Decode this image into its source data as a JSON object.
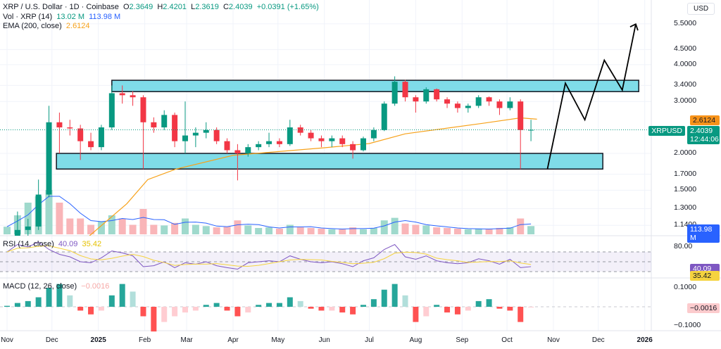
{
  "header": {
    "symbol": "XRP / U.S. Dollar · 1D · Coinbase",
    "o_label": "O",
    "o": "2.3649",
    "h_label": "H",
    "h": "2.4201",
    "l_label": "L",
    "l": "2.3619",
    "c_label": "C",
    "c": "2.4039",
    "change": "+0.0391 (+1.65%)",
    "vol_label": "Vol · XRP (14)",
    "vol": "13.02 M",
    "vol_ma": "113.98 M",
    "ema_label": "EMA (200, close)",
    "ema": "2.6124",
    "rsi_label": "RSI (14, close)",
    "rsi": "40.09",
    "rsi_ma": "35.42",
    "macd_label": "MACD (12, 26, close)",
    "macd": "−0.0016"
  },
  "axis": {
    "currency": "USD",
    "price_ticks": [
      "5.5000",
      "4.5000",
      "4.0000",
      "3.4000",
      "3.0000",
      "2.0000",
      "1.7000",
      "1.5000",
      "1.3000",
      "1.1400"
    ],
    "rsi_ticks": [
      "80.00"
    ],
    "macd_ticks": [
      "0.1000",
      "−0.1000"
    ],
    "date_ticks": [
      "Nov",
      "Dec",
      "2025",
      "Feb",
      "Mar",
      "Apr",
      "May",
      "Jun",
      "Jul",
      "Aug",
      "Sep",
      "Oct",
      "Nov",
      "Dec",
      "2026"
    ],
    "tags": {
      "ema": "2.6124",
      "symbol": "XRPUSD",
      "price": "2.4039",
      "countdown": "12:44:06",
      "vol_ma": "113.98 M",
      "vol": "13.02 M",
      "rsi": "40.09",
      "rsi_ma": "35.42",
      "macd": "−0.0016"
    }
  },
  "colors": {
    "up": "#089981",
    "down": "#f23645",
    "ema": "#f7a21b",
    "vol_ma": "#2962ff",
    "rsi": "#7e57c2",
    "rsi_ma": "#f5d33f",
    "zone": "#7fdce8"
  },
  "chart_data": {
    "type": "candlestick",
    "scale": "log",
    "date_ticks": [
      "2024-11-01",
      "2024-12-01",
      "2025-01-01",
      "2025-02-01",
      "2025-03-01",
      "2025-04-01",
      "2025-05-01",
      "2025-06-01",
      "2025-07-01",
      "2025-08-01",
      "2025-09-01",
      "2025-10-01",
      "2025-11-01",
      "2025-12-01",
      "2026-01-01"
    ],
    "ohlcv": [
      [
        "2024-11-01",
        0.51,
        0.56,
        0.5,
        0.55,
        120
      ],
      [
        "2024-11-08",
        0.55,
        1.27,
        0.54,
        1.1,
        300
      ],
      [
        "2024-11-15",
        1.1,
        1.2,
        0.98,
        1.13,
        500
      ],
      [
        "2024-11-22",
        1.13,
        1.63,
        1.1,
        1.45,
        600
      ],
      [
        "2024-11-29",
        1.45,
        2.9,
        1.42,
        2.55,
        700
      ],
      [
        "2024-12-06",
        2.55,
        2.75,
        2.0,
        2.45,
        500
      ],
      [
        "2024-12-13",
        2.45,
        2.6,
        2.3,
        2.43,
        250
      ],
      [
        "2024-12-20",
        2.43,
        2.5,
        1.9,
        2.2,
        250
      ],
      [
        "2024-12-27",
        2.2,
        2.35,
        2.05,
        2.1,
        150
      ],
      [
        "2025-01-03",
        2.1,
        2.5,
        2.05,
        2.45,
        200
      ],
      [
        "2025-01-10",
        2.45,
        3.4,
        2.4,
        3.2,
        300
      ],
      [
        "2025-01-17",
        3.2,
        3.4,
        2.95,
        3.15,
        250
      ],
      [
        "2025-01-24",
        3.15,
        3.25,
        2.9,
        3.1,
        150
      ],
      [
        "2025-01-31",
        3.1,
        3.15,
        1.77,
        2.55,
        400
      ],
      [
        "2025-02-07",
        2.55,
        2.65,
        2.35,
        2.45,
        150
      ],
      [
        "2025-02-14",
        2.45,
        2.8,
        2.4,
        2.7,
        140
      ],
      [
        "2025-02-21",
        2.7,
        2.75,
        2.1,
        2.2,
        180
      ],
      [
        "2025-02-28",
        2.2,
        3.0,
        2.0,
        2.3,
        250
      ],
      [
        "2025-03-07",
        2.3,
        2.45,
        2.1,
        2.35,
        150
      ],
      [
        "2025-03-14",
        2.35,
        2.55,
        2.25,
        2.4,
        130
      ],
      [
        "2025-03-21",
        2.4,
        2.45,
        2.15,
        2.2,
        110
      ],
      [
        "2025-03-28",
        2.2,
        2.25,
        2.0,
        2.05,
        120
      ],
      [
        "2025-04-04",
        2.05,
        2.15,
        1.62,
        2.0,
        220
      ],
      [
        "2025-04-11",
        2.0,
        2.15,
        1.95,
        2.1,
        140
      ],
      [
        "2025-04-18",
        2.1,
        2.2,
        2.05,
        2.15,
        100
      ],
      [
        "2025-04-25",
        2.15,
        2.35,
        2.1,
        2.2,
        110
      ],
      [
        "2025-05-02",
        2.2,
        2.25,
        2.1,
        2.15,
        90
      ],
      [
        "2025-05-09",
        2.15,
        2.6,
        2.12,
        2.45,
        150
      ],
      [
        "2025-05-16",
        2.45,
        2.5,
        2.3,
        2.35,
        110
      ],
      [
        "2025-05-23",
        2.35,
        2.4,
        2.2,
        2.25,
        100
      ],
      [
        "2025-05-30",
        2.25,
        2.3,
        2.1,
        2.2,
        90
      ],
      [
        "2025-06-06",
        2.2,
        2.3,
        2.1,
        2.25,
        80
      ],
      [
        "2025-06-13",
        2.25,
        2.3,
        2.1,
        2.15,
        80
      ],
      [
        "2025-06-20",
        2.15,
        2.2,
        1.92,
        2.05,
        110
      ],
      [
        "2025-06-27",
        2.05,
        2.28,
        2.03,
        2.25,
        80
      ],
      [
        "2025-07-04",
        2.25,
        2.45,
        2.2,
        2.4,
        100
      ],
      [
        "2025-07-11",
        2.4,
        3.0,
        2.38,
        2.95,
        220
      ],
      [
        "2025-07-18",
        2.95,
        3.65,
        2.9,
        3.5,
        260
      ],
      [
        "2025-07-25",
        3.5,
        3.55,
        3.0,
        3.1,
        170
      ],
      [
        "2025-08-01",
        3.1,
        3.15,
        2.75,
        3.0,
        150
      ],
      [
        "2025-08-08",
        3.0,
        3.35,
        2.95,
        3.3,
        140
      ],
      [
        "2025-08-15",
        3.3,
        3.32,
        3.0,
        3.05,
        110
      ],
      [
        "2025-08-22",
        3.05,
        3.1,
        2.85,
        2.95,
        100
      ],
      [
        "2025-08-29",
        2.95,
        3.0,
        2.75,
        2.85,
        90
      ],
      [
        "2025-09-05",
        2.85,
        2.95,
        2.75,
        2.9,
        80
      ],
      [
        "2025-09-12",
        2.9,
        3.15,
        2.85,
        3.1,
        90
      ],
      [
        "2025-09-19",
        3.1,
        3.12,
        2.9,
        3.0,
        80
      ],
      [
        "2025-09-26",
        3.0,
        3.05,
        2.7,
        2.85,
        100
      ],
      [
        "2025-10-03",
        2.85,
        3.1,
        2.8,
        3.0,
        110
      ],
      [
        "2025-10-10",
        3.0,
        3.05,
        1.77,
        2.4,
        250
      ],
      [
        "2025-10-17",
        2.4,
        2.6,
        2.2,
        2.4039,
        130
      ]
    ],
    "ema200": [
      [
        "2024-12-26",
        1.05
      ],
      [
        "2025-01-20",
        1.35
      ],
      [
        "2025-02-03",
        1.63
      ],
      [
        "2025-02-22",
        1.77
      ],
      [
        "2025-04-01",
        1.97
      ],
      [
        "2025-06-01",
        2.09
      ],
      [
        "2025-07-01",
        2.16
      ],
      [
        "2025-07-25",
        2.33
      ],
      [
        "2025-09-15",
        2.53
      ],
      [
        "2025-10-10",
        2.64
      ],
      [
        "2025-10-21",
        2.6124
      ]
    ],
    "rsi": [
      70,
      85,
      80,
      90,
      75,
      65,
      60,
      50,
      48,
      58,
      72,
      68,
      62,
      40,
      42,
      50,
      38,
      48,
      45,
      50,
      42,
      38,
      35,
      48,
      50,
      52,
      50,
      62,
      55,
      50,
      48,
      50,
      46,
      40,
      52,
      58,
      75,
      85,
      60,
      55,
      62,
      52,
      48,
      46,
      48,
      56,
      52,
      45,
      55,
      38,
      40.09
    ],
    "macd_hist": [
      0.005,
      0.02,
      0.03,
      0.05,
      0.1,
      0.12,
      0.06,
      -0.02,
      -0.04,
      -0.02,
      0.06,
      0.12,
      0.08,
      -0.05,
      -0.13,
      -0.08,
      -0.05,
      -0.03,
      -0.02,
      0.01,
      0.02,
      -0.02,
      -0.05,
      -0.03,
      0.01,
      0.02,
      0.02,
      0.05,
      0.03,
      -0.01,
      -0.02,
      -0.02,
      -0.03,
      -0.04,
      0.01,
      0.04,
      0.09,
      0.12,
      0.06,
      -0.08,
      -0.05,
      0.01,
      -0.03,
      -0.04,
      -0.02,
      0.03,
      0.04,
      -0.01,
      -0.02,
      -0.08,
      -0.0016
    ],
    "zones": [
      {
        "from": "2025-01-10",
        "to": "2025-12-28",
        "top": 3.54,
        "bottom": 3.24
      },
      {
        "from": "2024-12-04",
        "to": "2025-12-04",
        "top": 2.0,
        "bottom": 1.77
      }
    ],
    "projection": [
      [
        "2025-10-28",
        1.77
      ],
      [
        "2025-11-09",
        3.46
      ],
      [
        "2025-11-22",
        2.6
      ],
      [
        "2025-12-05",
        4.14
      ],
      [
        "2025-12-17",
        3.28
      ],
      [
        "2025-12-26",
        5.49
      ]
    ]
  }
}
